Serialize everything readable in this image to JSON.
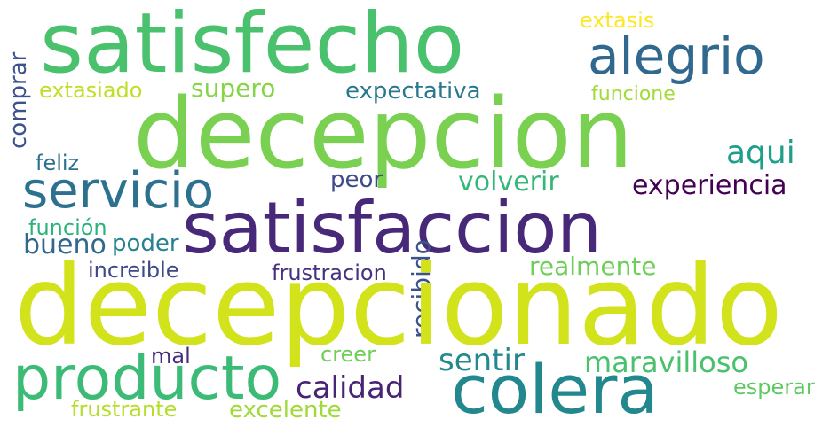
{
  "words": [
    {
      "text": "satisfecho",
      "color": "#4ac16d"
    },
    {
      "text": "decepcion",
      "color": "#7ad151"
    },
    {
      "text": "alegrio",
      "color": "#31688e"
    },
    {
      "text": "extasis",
      "color": "#fde725"
    },
    {
      "text": "comprar",
      "color": "#3b528b"
    },
    {
      "text": "extasiado",
      "color": "#bddf26"
    },
    {
      "text": "supero",
      "color": "#86d549"
    },
    {
      "text": "expectativa",
      "color": "#2a788e"
    },
    {
      "text": "funcione",
      "color": "#a2da37"
    },
    {
      "text": "feliz",
      "color": "#2c728e"
    },
    {
      "text": "aqui",
      "color": "#1f9e89"
    },
    {
      "text": "servicio",
      "color": "#2c728e"
    },
    {
      "text": "peor",
      "color": "#3e4a89"
    },
    {
      "text": "volverir",
      "color": "#35b779"
    },
    {
      "text": "experiencia",
      "color": "#440154"
    },
    {
      "text": "satisfaccion",
      "color": "#482878"
    },
    {
      "text": "función",
      "color": "#2db27d"
    },
    {
      "text": "bueno",
      "color": "#31688e"
    },
    {
      "text": "poder",
      "color": "#26828e"
    },
    {
      "text": "increible",
      "color": "#3e4989"
    },
    {
      "text": "frustracion",
      "color": "#46327e"
    },
    {
      "text": "recibido",
      "color": "#3b528b"
    },
    {
      "text": "realmente",
      "color": "#6ece58"
    },
    {
      "text": "decepcionado",
      "color": "#d2e21b"
    },
    {
      "text": "mal",
      "color": "#472d7b"
    },
    {
      "text": "creer",
      "color": "#6ece58"
    },
    {
      "text": "sentir",
      "color": "#23898e"
    },
    {
      "text": "maravilloso",
      "color": "#4ac16d"
    },
    {
      "text": "producto",
      "color": "#3bbb75"
    },
    {
      "text": "calidad",
      "color": "#482475"
    },
    {
      "text": "colera",
      "color": "#23888e"
    },
    {
      "text": "esperar",
      "color": "#5ec962"
    },
    {
      "text": "frustrante",
      "color": "#b5de2b"
    },
    {
      "text": "excelente",
      "color": "#a0da39"
    }
  ]
}
